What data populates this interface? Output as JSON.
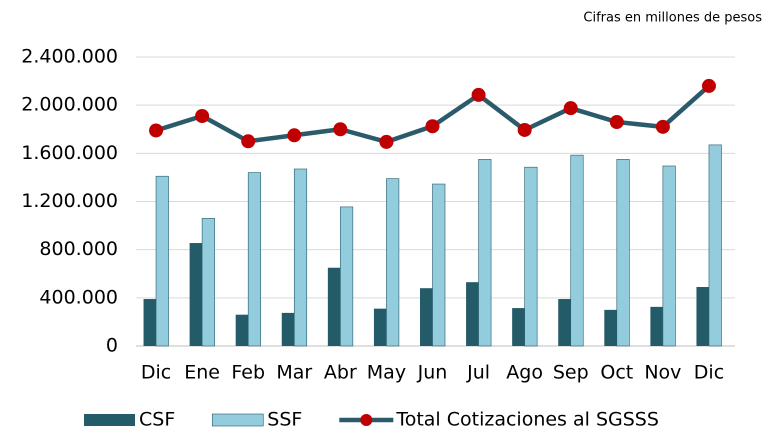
{
  "chart_data": {
    "type": "bar_line",
    "subtitle": "Cifras en millones de pesos",
    "categories": [
      "Dic",
      "Ene",
      "Feb",
      "Mar",
      "Abr",
      "May",
      "Jun",
      "Jul",
      "Ago",
      "Sep",
      "Oct",
      "Nov",
      "Dic"
    ],
    "series": [
      {
        "name": "CSF",
        "type": "bar",
        "color": "#245b69",
        "values": [
          390000,
          855000,
          260000,
          275000,
          650000,
          310000,
          480000,
          530000,
          315000,
          390000,
          300000,
          325000,
          490000
        ]
      },
      {
        "name": "SSF",
        "type": "bar",
        "color": "#93cddd",
        "values": [
          1410000,
          1060000,
          1440000,
          1470000,
          1155000,
          1390000,
          1345000,
          1550000,
          1485000,
          1585000,
          1550000,
          1495000,
          1670000
        ]
      },
      {
        "name": "Total Cotizaciones al SGSSS",
        "type": "line",
        "color": "#2b5b6b",
        "marker_color": "#c00000",
        "values": [
          1790000,
          1910000,
          1700000,
          1750000,
          1800000,
          1695000,
          1825000,
          2085000,
          1794000,
          1975000,
          1860000,
          1820000,
          2160000
        ]
      }
    ],
    "ylim": [
      0,
      2400000
    ],
    "yticks": [
      0,
      {
        "value": 400000,
        "label": "400.000"
      },
      {
        "value": 800000,
        "label": "800.000"
      },
      {
        "value": 1200000,
        "label": "1.200.000"
      },
      {
        "value": 1600000,
        "label": "1.600.000"
      },
      {
        "value": 2000000,
        "label": "2.000.000"
      },
      {
        "value": 2400000,
        "label": "2.400.000"
      }
    ],
    "grid": true,
    "legend": "bottom"
  }
}
